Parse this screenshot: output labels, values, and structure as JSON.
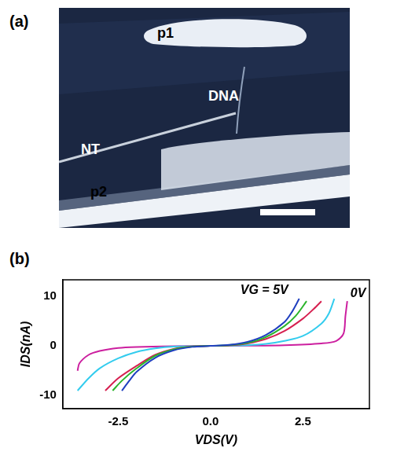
{
  "panel_labels": [
    "(a)",
    "(b)"
  ],
  "image": {
    "labels": [
      "p1",
      "NT",
      "DNA",
      "p2"
    ]
  },
  "chart_data": {
    "type": "line",
    "x_label": "VDS(V)",
    "y_label": "IDS(nA)",
    "annotations": [
      "VG = 5V",
      "0V"
    ],
    "xlim": [
      -4,
      4.3
    ],
    "xticks": [
      -2.5,
      {
        "value": 0,
        "label": "0.0"
      },
      2.5
    ],
    "ylim": [
      -12.6,
      13.3
    ],
    "yticks": [
      -10,
      0,
      10
    ],
    "grid": false,
    "series": [
      {
        "color": "#1f3fbf",
        "x": [
          -2.4,
          -2.2,
          -2,
          -1.5,
          -1,
          -0.5,
          0,
          0.5,
          1,
          1.5,
          2,
          2.2,
          2.4
        ],
        "values": [
          -9,
          -7,
          -5.2,
          -2.4,
          -0.9,
          -0.2,
          0,
          0.2,
          0.8,
          2.2,
          4.8,
          6.8,
          9.5
        ]
      },
      {
        "color": "#2bb52b",
        "x": [
          -2.65,
          -2.4,
          -2,
          -1.5,
          -1,
          -0.5,
          0,
          0.5,
          1,
          1.5,
          2,
          2.3,
          2.6
        ],
        "values": [
          -9,
          -7,
          -4.5,
          -2,
          -0.7,
          -0.15,
          0,
          0.15,
          0.6,
          1.8,
          4,
          6,
          9
        ]
      },
      {
        "color": "#d62050",
        "x": [
          -2.85,
          -2.5,
          -2,
          -1.5,
          -1,
          -0.5,
          0,
          0.5,
          1,
          1.5,
          2,
          2.5,
          2.8,
          3.0
        ],
        "values": [
          -9,
          -6.5,
          -4,
          -1.8,
          -0.6,
          -0.1,
          0,
          0.1,
          0.5,
          1.4,
          3,
          5.5,
          7.5,
          9
        ]
      },
      {
        "color": "#33ccee",
        "x": [
          -3.6,
          -3.3,
          -3,
          -2.5,
          -2,
          -1.5,
          -1,
          0,
          1,
          1.5,
          2,
          2.5,
          3,
          3.2,
          3.35
        ],
        "values": [
          -9,
          -6.5,
          -4.5,
          -2.5,
          -1.2,
          -0.5,
          -0.15,
          0,
          0.15,
          0.4,
          1,
          2,
          4.5,
          6.5,
          9.5
        ]
      },
      {
        "color": "#cc1f9f",
        "x": [
          -3.6,
          -3.55,
          -3.3,
          -3,
          -2.5,
          -2,
          -1,
          0,
          1,
          2,
          3,
          3.4,
          3.6,
          3.65,
          3.7
        ],
        "values": [
          -5,
          -3.5,
          -1.8,
          -1,
          -0.4,
          -0.2,
          -0.05,
          0,
          0.05,
          0.15,
          0.5,
          1,
          2.5,
          6,
          9
        ]
      }
    ]
  }
}
